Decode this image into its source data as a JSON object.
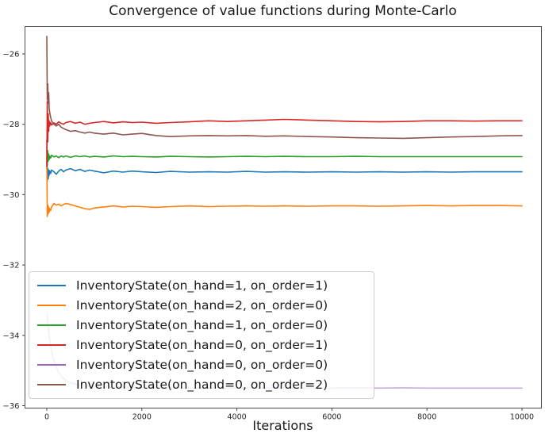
{
  "chart_data": {
    "type": "line",
    "title": "Convergence of value functions during Monte-Carlo",
    "xlabel": "Iterations",
    "ylabel": "",
    "grid": false,
    "legend_position": "lower left",
    "xlim": [
      -470,
      10420
    ],
    "ylim": [
      -36.1,
      -25.2
    ],
    "xticks": [
      0,
      2000,
      4000,
      6000,
      8000,
      10000
    ],
    "yticks": [
      -26,
      -28,
      -30,
      -32,
      -34,
      -36
    ],
    "x": [
      0,
      10,
      20,
      30,
      40,
      50,
      60,
      80,
      100,
      150,
      200,
      250,
      300,
      350,
      400,
      500,
      600,
      700,
      800,
      900,
      1000,
      1200,
      1400,
      1600,
      1800,
      2000,
      2300,
      2600,
      3000,
      3400,
      3800,
      4200,
      4600,
      5000,
      5500,
      6000,
      6500,
      7000,
      7500,
      8000,
      8500,
      9000,
      9500,
      10000
    ],
    "series": [
      {
        "name": "InventoryState(on_hand=1, on_order=1)",
        "color": "#1f77b4",
        "alpha": 1,
        "values": [
          -29.05,
          -29.62,
          -29.25,
          -29.55,
          -29.3,
          -29.45,
          -29.32,
          -29.4,
          -29.3,
          -29.35,
          -29.42,
          -29.33,
          -29.28,
          -29.35,
          -29.3,
          -29.26,
          -29.32,
          -29.28,
          -29.34,
          -29.3,
          -29.33,
          -29.38,
          -29.33,
          -29.36,
          -29.33,
          -29.35,
          -29.37,
          -29.34,
          -29.36,
          -29.35,
          -29.36,
          -29.34,
          -29.36,
          -29.35,
          -29.36,
          -29.35,
          -29.36,
          -29.35,
          -29.36,
          -29.35,
          -29.36,
          -29.35,
          -29.35,
          -29.35
        ]
      },
      {
        "name": "InventoryState(on_hand=2, on_order=0)",
        "color": "#ff7f0e",
        "alpha": 1,
        "values": [
          -28.7,
          -30.62,
          -30.3,
          -30.55,
          -30.35,
          -30.5,
          -30.4,
          -30.45,
          -30.35,
          -30.25,
          -30.3,
          -30.27,
          -30.32,
          -30.28,
          -30.25,
          -30.28,
          -30.32,
          -30.36,
          -30.4,
          -30.42,
          -30.38,
          -30.35,
          -30.32,
          -30.35,
          -30.33,
          -30.34,
          -30.36,
          -30.34,
          -30.32,
          -30.34,
          -30.33,
          -30.32,
          -30.33,
          -30.32,
          -30.33,
          -30.32,
          -30.32,
          -30.33,
          -30.32,
          -30.31,
          -30.32,
          -30.31,
          -30.31,
          -30.32
        ]
      },
      {
        "name": "InventoryState(on_hand=1, on_order=0)",
        "color": "#2ca02c",
        "alpha": 1,
        "values": [
          -28.45,
          -29.2,
          -28.75,
          -29.05,
          -28.85,
          -29.0,
          -28.9,
          -28.96,
          -28.88,
          -28.93,
          -28.9,
          -28.95,
          -28.9,
          -28.93,
          -28.9,
          -28.94,
          -28.9,
          -28.92,
          -28.9,
          -28.93,
          -28.91,
          -28.93,
          -28.9,
          -28.92,
          -28.91,
          -28.92,
          -28.93,
          -28.91,
          -28.92,
          -28.93,
          -28.92,
          -28.91,
          -28.92,
          -28.91,
          -28.92,
          -28.92,
          -28.91,
          -28.92,
          -28.92,
          -28.92,
          -28.92,
          -28.92,
          -28.92,
          -28.92
        ]
      },
      {
        "name": "InventoryState(on_hand=0, on_order=1)",
        "color": "#d62728",
        "alpha": 1,
        "values": [
          -29.2,
          -27.35,
          -28.5,
          -27.7,
          -28.2,
          -27.9,
          -28.05,
          -27.95,
          -28.02,
          -27.96,
          -28.0,
          -27.93,
          -27.97,
          -28.0,
          -27.95,
          -27.92,
          -27.97,
          -27.94,
          -28.0,
          -27.97,
          -27.95,
          -27.92,
          -27.96,
          -27.93,
          -27.95,
          -27.94,
          -27.97,
          -27.95,
          -27.93,
          -27.9,
          -27.92,
          -27.9,
          -27.88,
          -27.86,
          -27.88,
          -27.9,
          -27.92,
          -27.93,
          -27.92,
          -27.9,
          -27.9,
          -27.91,
          -27.9,
          -27.9
        ]
      },
      {
        "name": "InventoryState(on_hand=0, on_order=0)",
        "color": "#9467bd",
        "alpha": 0.55,
        "values": [
          -33.35,
          -33.45,
          -33.6,
          -33.75,
          -33.9,
          -34.02,
          -34.12,
          -34.3,
          -34.45,
          -34.72,
          -34.92,
          -35.05,
          -35.15,
          -35.22,
          -35.28,
          -35.35,
          -35.39,
          -35.42,
          -35.44,
          -35.45,
          -35.46,
          -35.47,
          -35.48,
          -35.47,
          -35.48,
          -35.49,
          -35.48,
          -35.49,
          -35.5,
          -35.49,
          -35.5,
          -35.49,
          -35.5,
          -35.49,
          -35.5,
          -35.5,
          -35.49,
          -35.5,
          -35.49,
          -35.5,
          -35.5,
          -35.5,
          -35.5,
          -35.5
        ]
      },
      {
        "name": "InventoryState(on_hand=0, on_order=2)",
        "color": "#8c564b",
        "alpha": 1,
        "values": [
          -25.5,
          -27.3,
          -26.85,
          -27.4,
          -27.1,
          -27.55,
          -27.65,
          -27.8,
          -27.9,
          -28.0,
          -28.05,
          -28.0,
          -28.08,
          -28.12,
          -28.15,
          -28.2,
          -28.18,
          -28.22,
          -28.25,
          -28.22,
          -28.25,
          -28.28,
          -28.25,
          -28.3,
          -28.28,
          -28.26,
          -28.32,
          -28.35,
          -28.33,
          -28.32,
          -28.33,
          -28.32,
          -28.34,
          -28.33,
          -28.35,
          -28.36,
          -28.38,
          -28.39,
          -28.4,
          -28.38,
          -28.36,
          -28.35,
          -28.33,
          -28.32
        ]
      }
    ]
  }
}
